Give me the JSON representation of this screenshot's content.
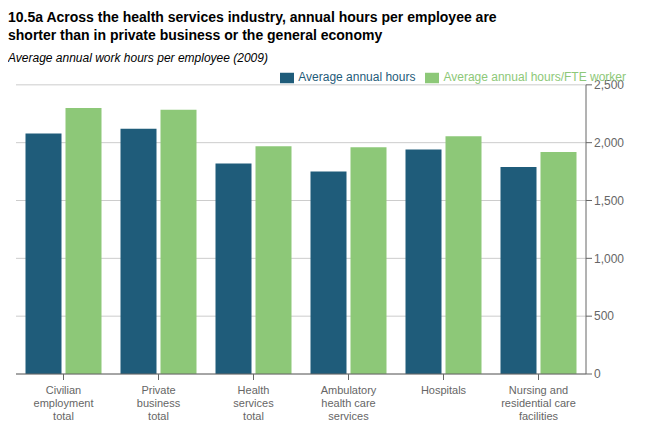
{
  "chart_data": {
    "type": "bar",
    "title": "10.5a  Across the health services industry, annual hours per employee are\nshorter than in private business or the general economy",
    "subtitle": "Average annual work hours per employee (2009)",
    "categories": [
      "Civilian\nemployment\ntotal",
      "Private\nbusiness\ntotal",
      "Health\nservices\ntotal",
      "Ambulatory\nhealth care\nservices",
      "Hospitals",
      "Nursing and\nresidential care\nfacilities"
    ],
    "series": [
      {
        "name": "Average annual hours",
        "color": "#1f5c7a",
        "values": [
          2080,
          2120,
          1820,
          1750,
          1940,
          1790
        ]
      },
      {
        "name": "Average annual hours/FTE worker",
        "color": "#8dc878",
        "values": [
          2300,
          2285,
          1970,
          1960,
          2055,
          1920
        ]
      }
    ],
    "ylim": [
      0,
      2500
    ],
    "yticks": [
      0,
      500,
      {
        "value": 1000,
        "label": "1,000"
      },
      {
        "value": 1500,
        "label": "1,500"
      },
      {
        "value": 2000,
        "label": "2,000"
      },
      {
        "value": 2500,
        "label": "2,500"
      }
    ],
    "grid": true,
    "legend": "upper right"
  }
}
